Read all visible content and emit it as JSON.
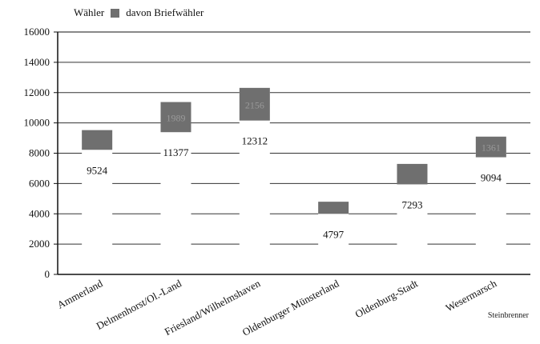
{
  "chart_data": {
    "type": "bar",
    "legend": [
      "Wähler",
      "davon Briefwähler"
    ],
    "categories": [
      "Ammerland",
      "Delmenhorst/Ol.-Land",
      "Friesland/Wilhelmshaven",
      "Oldenburger Münsterland",
      "Oldenburg-Stadt",
      "Wesermarsch"
    ],
    "series": [
      {
        "name": "Wähler",
        "values": [
          9524,
          11377,
          12312,
          4797,
          7293,
          9094
        ]
      },
      {
        "name": "davon Briefwähler",
        "values": [
          1300,
          1989,
          2156,
          800,
          1350,
          1361
        ]
      }
    ],
    "data_labels": {
      "total": [
        "9524",
        "11377",
        "12312",
        "4797",
        "7293",
        "9094"
      ],
      "postal": [
        "",
        "1989",
        "2156",
        "",
        "",
        "1361"
      ]
    },
    "ylim": [
      0,
      16000
    ],
    "yticks": [
      0,
      2000,
      4000,
      6000,
      8000,
      10000,
      12000,
      14000,
      16000
    ],
    "grid": true,
    "legend_position": "top-left",
    "colors": {
      "postal": "#6f6f6f",
      "axis": "#111111"
    }
  },
  "credit": "Steinbrenner"
}
